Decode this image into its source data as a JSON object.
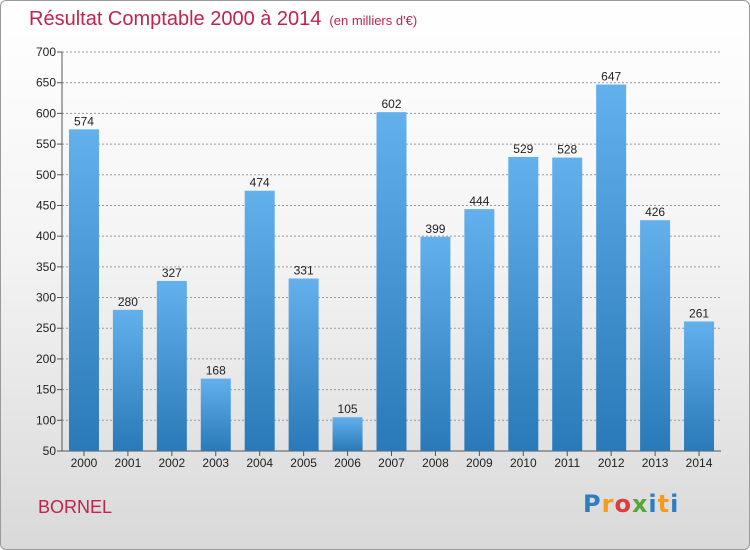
{
  "header": {
    "title": "Résultat Comptable 2000 à 2014",
    "subtitle": "(en milliers d'€)"
  },
  "footer": {
    "place": "BORNEL",
    "logo_letters": [
      "P",
      "r",
      "o",
      "x",
      "i",
      "t",
      "i"
    ],
    "logo_colors": [
      "#2f7dc1",
      "#f59b1c",
      "#e23a3a",
      "#56a63a",
      "#2f7dc1",
      "#f59b1c",
      "#2f7dc1"
    ]
  },
  "colors": {
    "bar_top": "#62b0ec",
    "bar_bottom": "#2a79b8",
    "grid": "#9a9a9a",
    "axis": "#555555"
  },
  "chart_data": {
    "type": "bar",
    "title": "Résultat Comptable 2000 à 2014",
    "subtitle": "(en milliers d'€)",
    "categories": [
      "2000",
      "2001",
      "2002",
      "2003",
      "2004",
      "2005",
      "2006",
      "2007",
      "2008",
      "2009",
      "2010",
      "2011",
      "2012",
      "2013",
      "2014"
    ],
    "values": [
      574,
      280,
      327,
      168,
      474,
      331,
      105,
      602,
      399,
      444,
      529,
      528,
      647,
      426,
      261
    ],
    "ylim": [
      50,
      700
    ],
    "yticks": [
      "50",
      "100",
      "150",
      "200",
      "250",
      "300",
      "350",
      "400",
      "450",
      "500",
      "550",
      "600",
      "650",
      "700"
    ],
    "grid": true
  }
}
